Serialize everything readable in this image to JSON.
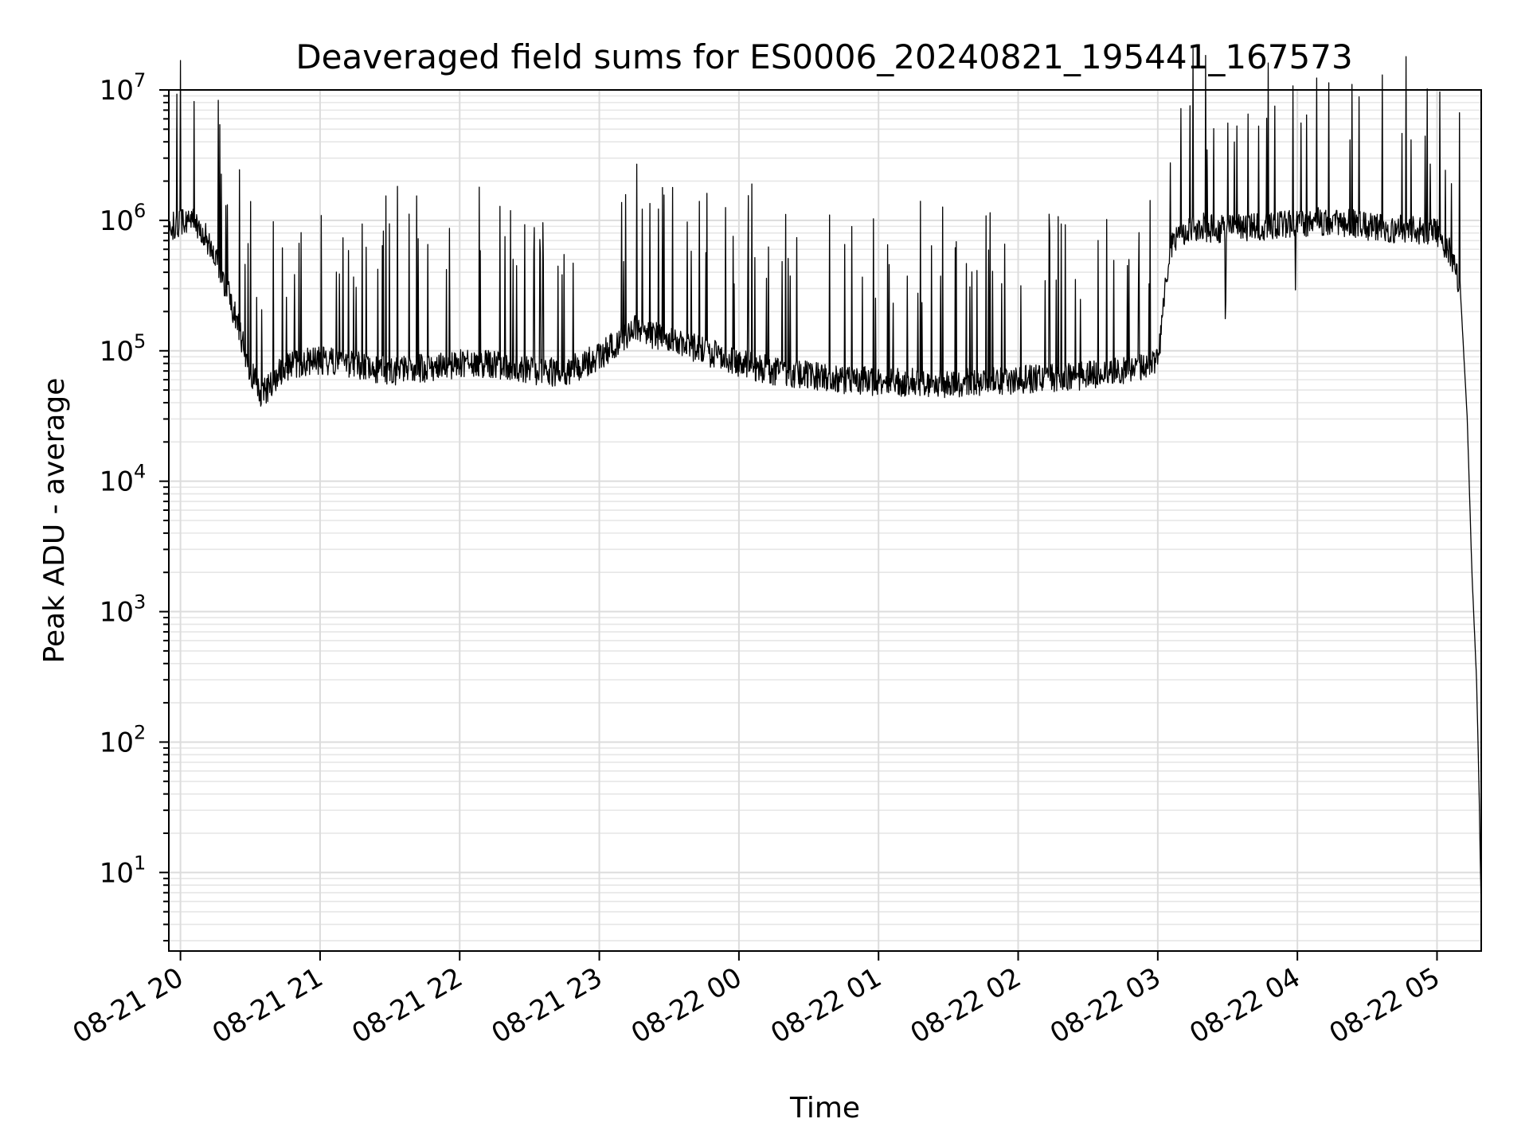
{
  "chart_data": {
    "type": "line",
    "title": "Deaveraged field sums for ES0006_20240821_195441_167573",
    "xlabel": "Time",
    "ylabel": "Peak ADU - average",
    "y_scale": "log",
    "ylim": [
      2.5,
      10000000
    ],
    "xlim": [
      "2024-08-21 19:55",
      "2024-08-22 05:19"
    ],
    "grid": {
      "major": true,
      "minor_y": true
    },
    "legend": "none",
    "series_color": "#000000",
    "x_ticks": [
      {
        "label": "08-21 20",
        "value": "2024-08-21 20:00"
      },
      {
        "label": "08-21 21",
        "value": "2024-08-21 21:00"
      },
      {
        "label": "08-21 22",
        "value": "2024-08-21 22:00"
      },
      {
        "label": "08-21 23",
        "value": "2024-08-21 23:00"
      },
      {
        "label": "08-22 00",
        "value": "2024-08-22 00:00"
      },
      {
        "label": "08-22 01",
        "value": "2024-08-22 01:00"
      },
      {
        "label": "08-22 02",
        "value": "2024-08-22 02:00"
      },
      {
        "label": "08-22 03",
        "value": "2024-08-22 03:00"
      },
      {
        "label": "08-22 04",
        "value": "2024-08-22 04:00"
      },
      {
        "label": "08-22 05",
        "value": "2024-08-22 05:00"
      }
    ],
    "y_ticks": [
      {
        "base": "10",
        "exp": "1",
        "value": 10
      },
      {
        "base": "10",
        "exp": "2",
        "value": 100
      },
      {
        "base": "10",
        "exp": "3",
        "value": 1000
      },
      {
        "base": "10",
        "exp": "4",
        "value": 10000
      },
      {
        "base": "10",
        "exp": "5",
        "value": 100000
      },
      {
        "base": "10",
        "exp": "6",
        "value": 1000000
      },
      {
        "base": "10",
        "exp": "7",
        "value": 10000000
      }
    ],
    "series": [
      {
        "x": [
          "2024-08-21 19:55",
          "2024-08-21 20:00",
          "2024-08-21 20:05",
          "2024-08-21 20:10",
          "2024-08-21 20:15",
          "2024-08-21 20:20",
          "2024-08-21 20:25",
          "2024-08-21 20:30",
          "2024-08-21 20:35",
          "2024-08-21 20:40",
          "2024-08-21 20:45",
          "2024-08-21 20:50",
          "2024-08-21 20:55",
          "2024-08-21 21:00",
          "2024-08-21 21:10",
          "2024-08-21 21:20",
          "2024-08-21 21:30",
          "2024-08-21 21:40",
          "2024-08-21 21:50",
          "2024-08-21 22:00",
          "2024-08-21 22:15",
          "2024-08-21 22:30",
          "2024-08-21 22:45",
          "2024-08-21 23:00",
          "2024-08-21 23:15",
          "2024-08-21 23:30",
          "2024-08-21 23:45",
          "2024-08-22 00:00",
          "2024-08-22 00:15",
          "2024-08-22 00:30",
          "2024-08-22 00:45",
          "2024-08-22 01:00",
          "2024-08-22 01:15",
          "2024-08-22 01:30",
          "2024-08-22 01:45",
          "2024-08-22 02:00",
          "2024-08-22 02:15",
          "2024-08-22 02:30",
          "2024-08-22 02:45",
          "2024-08-22 03:00",
          "2024-08-22 03:05",
          "2024-08-22 03:10",
          "2024-08-22 03:15",
          "2024-08-22 03:30",
          "2024-08-22 03:45",
          "2024-08-22 04:00",
          "2024-08-22 04:15",
          "2024-08-22 04:30",
          "2024-08-22 04:45",
          "2024-08-22 05:00",
          "2024-08-22 05:05",
          "2024-08-22 05:10",
          "2024-08-22 05:13",
          "2024-08-22 05:15",
          "2024-08-22 05:17",
          "2024-08-22 05:18",
          "2024-08-22 05:19"
        ],
        "y": [
          900000,
          950000,
          1000000,
          800000,
          500000,
          300000,
          150000,
          70000,
          45000,
          60000,
          75000,
          80000,
          82000,
          85000,
          80000,
          75000,
          70000,
          72000,
          75000,
          80000,
          78000,
          70000,
          68000,
          90000,
          150000,
          120000,
          100000,
          80000,
          70000,
          65000,
          60000,
          58000,
          57000,
          56000,
          58000,
          60000,
          62000,
          65000,
          70000,
          80000,
          600000,
          800000,
          900000,
          850000,
          900000,
          950000,
          1000000,
          900000,
          850000,
          800000,
          600000,
          300000,
          30000,
          2000,
          300,
          50,
          5
        ]
      }
    ]
  }
}
